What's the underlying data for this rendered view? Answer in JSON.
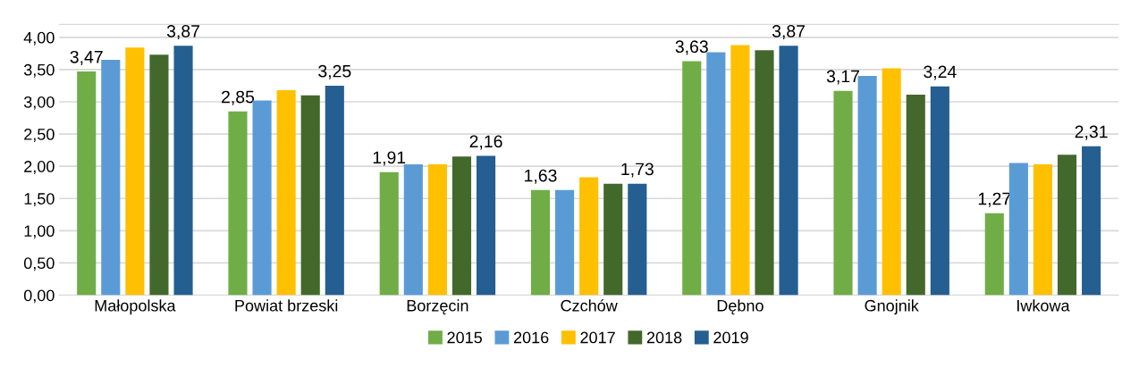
{
  "chart_data": {
    "type": "bar",
    "categories": [
      "Małopolska",
      "Powiat brzeski",
      "Borzęcin",
      "Czchów",
      "Dębno",
      "Gnojnik",
      "Iwkowa"
    ],
    "series": [
      {
        "name": "2015",
        "color": "#70ad47",
        "values": [
          3.47,
          2.85,
          1.91,
          1.63,
          3.63,
          3.17,
          1.27
        ],
        "value_labels": [
          "3,47",
          "2,85",
          "1,91",
          "1,63",
          "3,63",
          "3,17",
          "1,27"
        ]
      },
      {
        "name": "2016",
        "color": "#5b9bd5",
        "values": [
          3.65,
          3.02,
          2.03,
          1.63,
          3.77,
          3.4,
          2.05
        ]
      },
      {
        "name": "2017",
        "color": "#ffc000",
        "values": [
          3.84,
          3.18,
          2.03,
          1.83,
          3.88,
          3.52,
          2.03
        ]
      },
      {
        "name": "2018",
        "color": "#43682b",
        "values": [
          3.73,
          3.1,
          2.15,
          1.73,
          3.8,
          3.11,
          2.18
        ]
      },
      {
        "name": "2019",
        "color": "#255e91",
        "values": [
          3.87,
          3.25,
          2.16,
          1.73,
          3.87,
          3.24,
          2.31
        ],
        "value_labels": [
          "3,87",
          "3,25",
          "2,16",
          "1,73",
          "3,87",
          "3,24",
          "2,31"
        ]
      }
    ],
    "ylim": [
      0,
      4.2
    ],
    "yticks": [
      {
        "value": 0,
        "label": "0,00"
      },
      {
        "value": 0.5,
        "label": "0,50"
      },
      {
        "value": 1,
        "label": "1,00"
      },
      {
        "value": 1.5,
        "label": "1,50"
      },
      {
        "value": 2,
        "label": "2,00"
      },
      {
        "value": 2.5,
        "label": "2,50"
      },
      {
        "value": 3,
        "label": "3,00"
      },
      {
        "value": 3.5,
        "label": "3,50"
      },
      {
        "value": 4,
        "label": "4,00"
      }
    ],
    "grid": "y",
    "legend": "bottom"
  }
}
